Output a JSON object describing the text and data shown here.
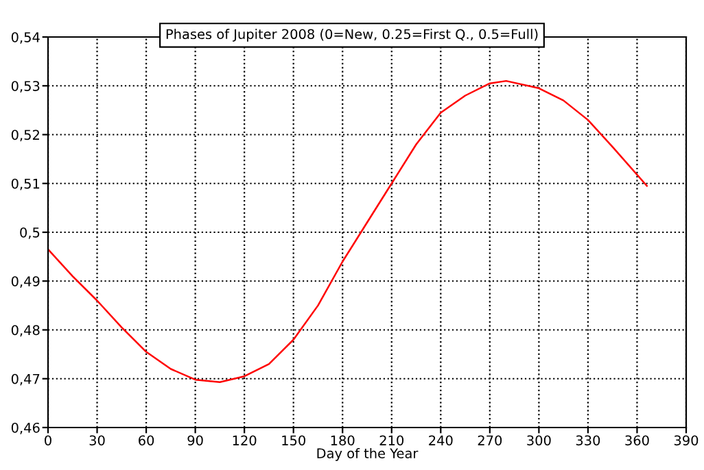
{
  "chart_data": {
    "type": "line",
    "title": "Phases of Jupiter 2008 (0=New, 0.25=First Q., 0.5=Full)",
    "xlabel": "Day of the Year",
    "x": [
      0,
      15,
      30,
      45,
      60,
      75,
      90,
      105,
      120,
      135,
      150,
      165,
      180,
      195,
      210,
      225,
      240,
      255,
      270,
      280,
      300,
      315,
      330,
      345,
      366
    ],
    "series": [
      {
        "color": "#ff0000",
        "values": [
          0.4965,
          0.491,
          0.486,
          0.4805,
          0.4755,
          0.472,
          0.4698,
          0.4693,
          0.4705,
          0.473,
          0.478,
          0.485,
          0.494,
          0.502,
          0.51,
          0.518,
          0.5245,
          0.528,
          0.5305,
          0.531,
          0.5295,
          0.527,
          0.523,
          0.5175,
          0.5095
        ]
      }
    ],
    "xlim": [
      0,
      390
    ],
    "xticks": [
      0,
      30,
      60,
      90,
      120,
      150,
      180,
      210,
      240,
      270,
      300,
      330,
      360,
      390
    ],
    "ylim": [
      0.46,
      0.54
    ],
    "yticks": [
      {
        "value": 0.46,
        "label": "0,46"
      },
      {
        "value": 0.47,
        "label": "0,47"
      },
      {
        "value": 0.48,
        "label": "0,48"
      },
      {
        "value": 0.49,
        "label": "0,49"
      },
      {
        "value": 0.5,
        "label": "0,5"
      },
      {
        "value": 0.51,
        "label": "0,51"
      },
      {
        "value": 0.52,
        "label": "0,52"
      },
      {
        "value": 0.53,
        "label": "0,53"
      },
      {
        "value": 0.54,
        "label": "0,54"
      }
    ],
    "grid": true,
    "marker": "none",
    "line_style": "solid"
  }
}
